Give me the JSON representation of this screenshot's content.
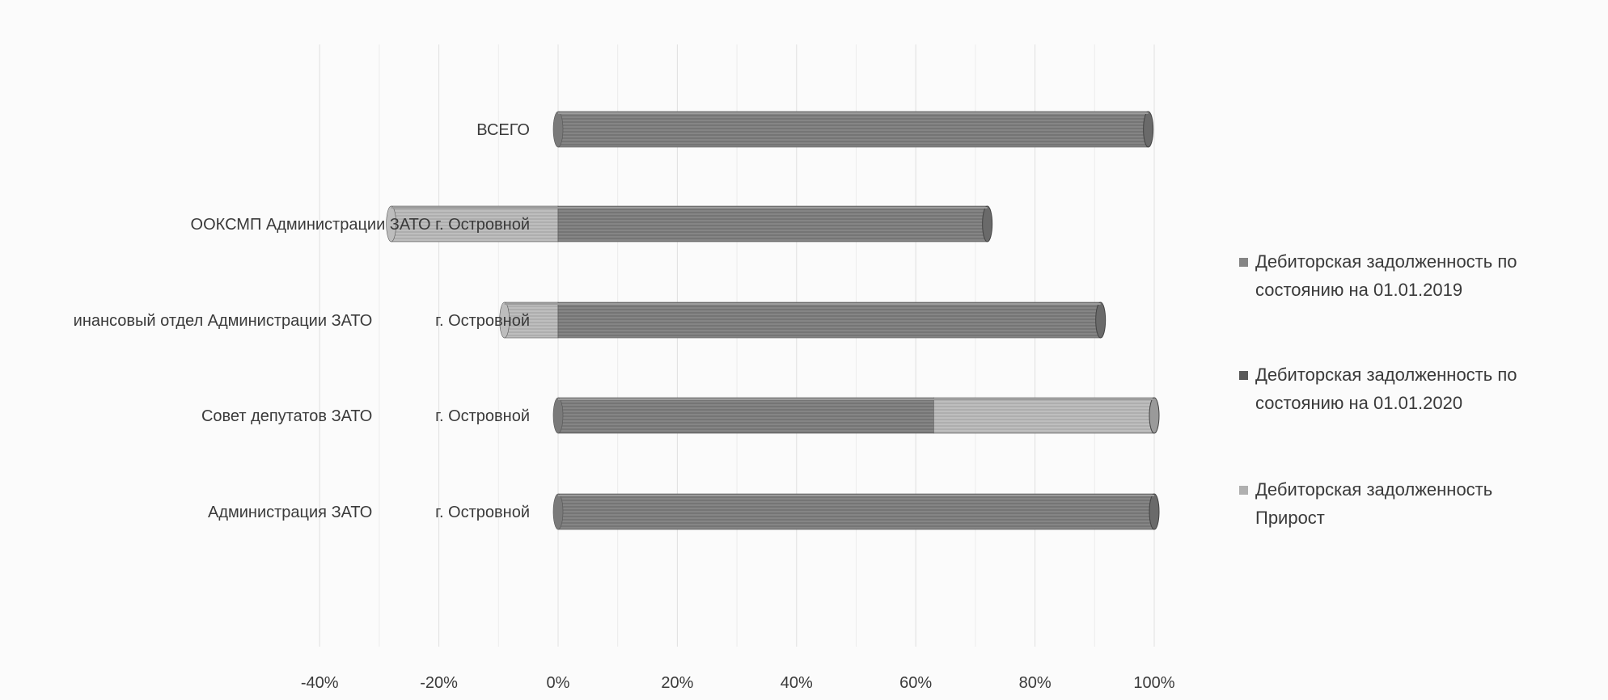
{
  "chart_data": {
    "type": "bar",
    "orientation": "horizontal",
    "stacked": true,
    "percent_axis": true,
    "categories": [
      "Администрация ЗАТО              г. Островной",
      "Совет депутатов ЗАТО              г. Островной",
      "инансовый отдел Администрации ЗАТО              г. Островной",
      "ООКСМП Администрации ЗАТО г. Островной",
      "ВСЕГО"
    ],
    "series": [
      {
        "name": "Дебиторская задолженность по состоянию на  01.01.2019",
        "values": [
          0,
          0,
          0,
          0,
          0
        ],
        "color": "#858585"
      },
      {
        "name": "Дебиторская задолженность по состоянию на  01.01.2020",
        "values": [
          100,
          63,
          91,
          72,
          99
        ],
        "color": "#6b6b6b"
      },
      {
        "name": "Дебиторская задолженность Прирост",
        "values": [
          0,
          37,
          -9,
          -28,
          0
        ],
        "color": "#b0b0b0"
      }
    ],
    "x_ticks": [
      "-40%",
      "-20%",
      "0%",
      "20%",
      "40%",
      "60%",
      "80%",
      "100%"
    ],
    "xlim": [
      -40,
      100
    ],
    "grid": true,
    "legend_position": "right"
  },
  "legend": {
    "items": [
      {
        "line1": "Дебиторская задолженность по",
        "line2": "состоянию на  01.01.2019",
        "color": "#858585"
      },
      {
        "line1": "Дебиторская задолженность по",
        "line2": "состоянию на  01.01.2020",
        "color": "#5a5a5a"
      },
      {
        "line1": "Дебиторская задолженность",
        "line2": "Прирост",
        "color": "#b0b0b0"
      }
    ]
  }
}
